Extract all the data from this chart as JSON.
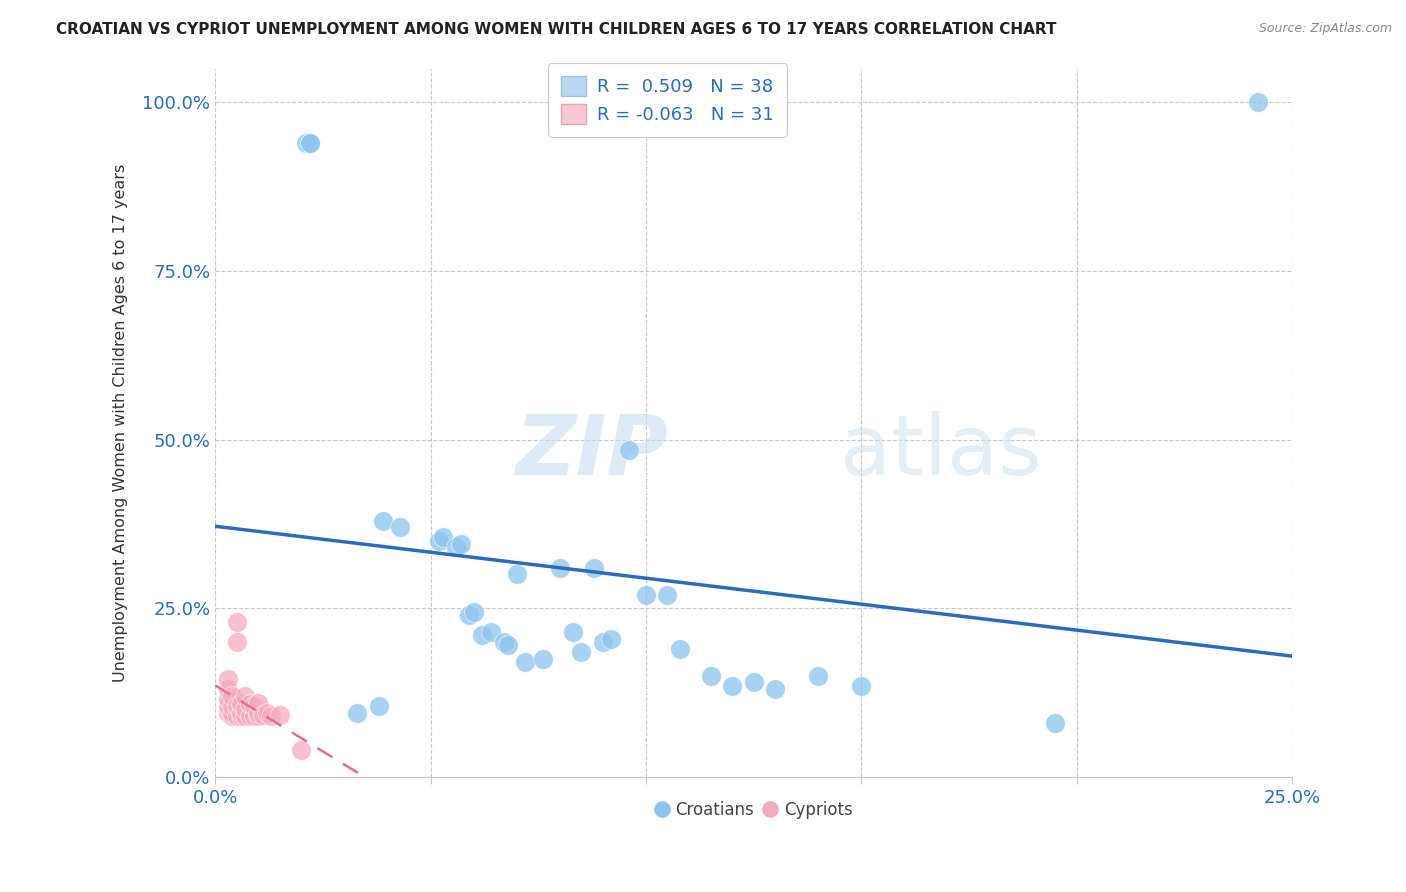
{
  "title": "CROATIAN VS CYPRIOT UNEMPLOYMENT AMONG WOMEN WITH CHILDREN AGES 6 TO 17 YEARS CORRELATION CHART",
  "source": "Source: ZipAtlas.com",
  "ylabel": "Unemployment Among Women with Children Ages 6 to 17 years",
  "xlabel": "",
  "xlim": [
    0.0,
    0.25
  ],
  "ylim": [
    0.0,
    1.05
  ],
  "xticks": [
    0.0,
    0.05,
    0.1,
    0.15,
    0.2,
    0.25
  ],
  "yticks": [
    0.0,
    0.25,
    0.5,
    0.75,
    1.0
  ],
  "ytick_labels": [
    "0.0%",
    "25.0%",
    "50.0%",
    "75.0%",
    "100.0%"
  ],
  "xtick_labels": [
    "0.0%",
    "",
    "",
    "",
    "",
    "25.0%"
  ],
  "croatian_R": 0.509,
  "croatian_N": 38,
  "cypriot_R": -0.063,
  "cypriot_N": 31,
  "blue_color": "#8DC4ED",
  "pink_color": "#F4ABBE",
  "blue_line_color": "#2B6BBD",
  "pink_line_color": "#E07090",
  "legend_blue_face": "#B8D8F4",
  "legend_pink_face": "#F8C8D4",
  "watermark_zip": "ZIP",
  "watermark_atlas": "atlas",
  "croatian_x": [
    0.021,
    0.022,
    0.022,
    0.033,
    0.038,
    0.039,
    0.043,
    0.052,
    0.053,
    0.056,
    0.057,
    0.059,
    0.06,
    0.062,
    0.064,
    0.067,
    0.068,
    0.07,
    0.072,
    0.076,
    0.08,
    0.083,
    0.085,
    0.088,
    0.09,
    0.092,
    0.096,
    0.1,
    0.105,
    0.108,
    0.115,
    0.12,
    0.125,
    0.13,
    0.14,
    0.15,
    0.195,
    0.242
  ],
  "croatian_y": [
    0.94,
    0.94,
    0.94,
    0.095,
    0.105,
    0.38,
    0.37,
    0.35,
    0.355,
    0.34,
    0.345,
    0.24,
    0.245,
    0.21,
    0.215,
    0.2,
    0.195,
    0.3,
    0.17,
    0.175,
    0.31,
    0.215,
    0.185,
    0.31,
    0.2,
    0.205,
    0.485,
    0.27,
    0.27,
    0.19,
    0.15,
    0.135,
    0.14,
    0.13,
    0.15,
    0.135,
    0.08,
    1.0
  ],
  "cypriot_x": [
    0.003,
    0.003,
    0.003,
    0.003,
    0.003,
    0.004,
    0.004,
    0.004,
    0.004,
    0.005,
    0.005,
    0.005,
    0.005,
    0.006,
    0.006,
    0.006,
    0.007,
    0.007,
    0.007,
    0.008,
    0.008,
    0.009,
    0.009,
    0.01,
    0.01,
    0.01,
    0.011,
    0.012,
    0.013,
    0.015,
    0.02
  ],
  "cypriot_y": [
    0.095,
    0.105,
    0.115,
    0.13,
    0.145,
    0.09,
    0.095,
    0.105,
    0.12,
    0.09,
    0.105,
    0.2,
    0.23,
    0.09,
    0.095,
    0.108,
    0.09,
    0.1,
    0.12,
    0.09,
    0.108,
    0.09,
    0.105,
    0.09,
    0.095,
    0.11,
    0.092,
    0.095,
    0.09,
    0.092,
    0.04
  ]
}
